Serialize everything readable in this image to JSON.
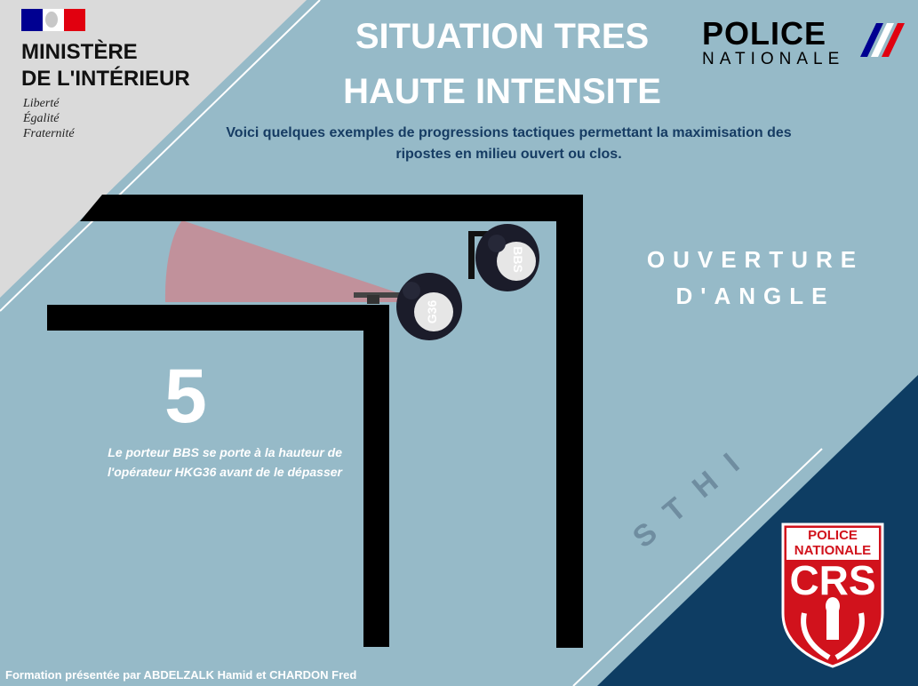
{
  "header": {
    "ministry_line1": "MINISTÈRE",
    "ministry_line2": "DE L'INTÉRIEUR",
    "motto": [
      "Liberté",
      "Égalité",
      "Fraternité"
    ],
    "title_line1": "SITUATION TRES",
    "title_line2": "HAUTE INTENSITE",
    "subtitle_line1": "Voici quelques exemples de progressions tactiques permettant la maximisation des",
    "subtitle_line2": "ripostes en milieu ouvert ou clos.",
    "police_logo": {
      "word1": "POLICE",
      "word2": "NATIONALE"
    }
  },
  "diagram": {
    "operator_1_label": "BBS",
    "operator_2_label": "G36",
    "step_number": "5",
    "description_line1": "Le porteur BBS se porte à la hauteur de",
    "description_line2": "l'opérateur HKG36 avant de le dépasser"
  },
  "section": {
    "line1": "OUVERTURE",
    "line2": "D'ANGLE"
  },
  "watermark": "STHI",
  "crs_badge": {
    "line1": "POLICE",
    "line2": "NATIONALE",
    "line3": "CRS"
  },
  "footer": "Formation présentée par ABDELZALK Hamid et CHARDON Fred",
  "colors": {
    "background": "#96bac8",
    "dark_navy": "#0f3d64",
    "light_gray": "#d9d9d9",
    "walls": "#000000",
    "fire_sector": "#c98a93",
    "flag_blue": "#000091",
    "flag_red": "#e1000f",
    "crs_red": "#d1121c"
  }
}
